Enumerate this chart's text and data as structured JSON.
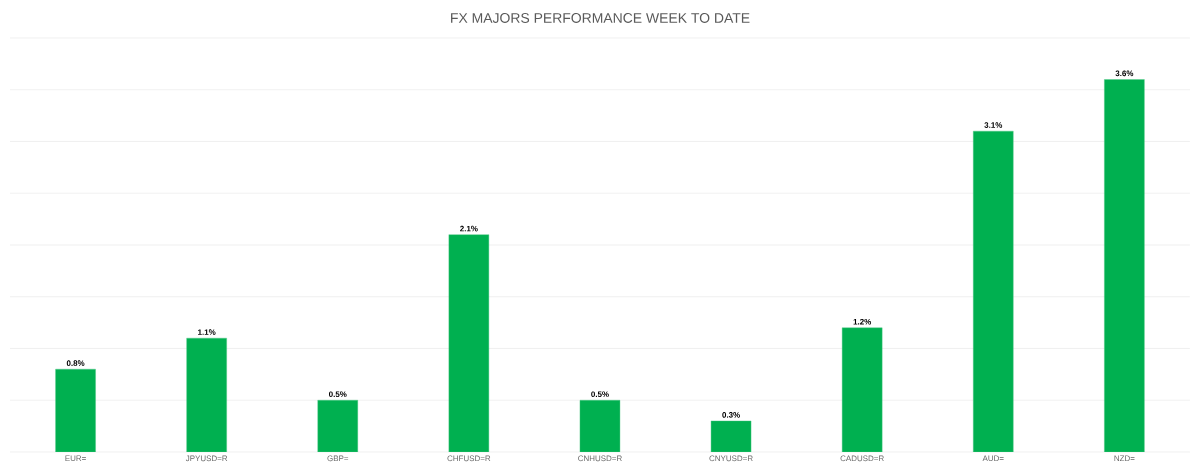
{
  "chart_data": {
    "type": "bar",
    "title": "FX MAJORS PERFORMANCE WEEK TO DATE",
    "categories": [
      "EUR=",
      "JPYUSD=R",
      "GBP=",
      "CHFUSD=R",
      "CNHUSD=R",
      "CNYUSD=R",
      "CADUSD=R",
      "AUD=",
      "NZD="
    ],
    "values": [
      0.8,
      1.1,
      0.5,
      2.1,
      0.5,
      0.3,
      1.2,
      3.1,
      3.6
    ],
    "value_labels": [
      "0.8%",
      "1.1%",
      "0.5%",
      "2.1%",
      "0.5%",
      "0.3%",
      "1.2%",
      "3.1%",
      "3.6%"
    ],
    "color": "#00b050",
    "ylim": [
      0,
      4
    ],
    "yticks": [
      {
        "value": 0,
        "label": null
      },
      {
        "value": 0.5,
        "label": null
      },
      {
        "value": 1,
        "label": null
      },
      {
        "value": 1.5,
        "label": null
      },
      {
        "value": 2,
        "label": null
      },
      {
        "value": 2.5,
        "label": null
      },
      {
        "value": 3,
        "label": null
      },
      {
        "value": 3.5,
        "label": null
      },
      {
        "value": 4,
        "label": null
      }
    ],
    "grid": "y",
    "tick_labels": "x"
  }
}
